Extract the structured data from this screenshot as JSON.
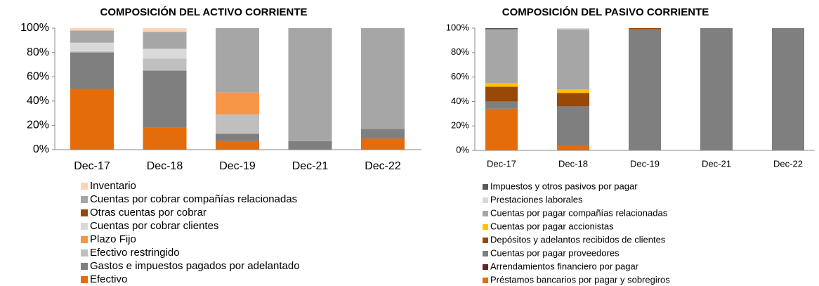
{
  "chart_data": [
    {
      "type": "bar",
      "stacked": true,
      "title": "COMPOSICIÓN DEL ACTIVO CORRIENTE",
      "categories": [
        "Dec-17",
        "Dec-18",
        "Dec-19",
        "Dec-21",
        "Dec-22"
      ],
      "ylim": [
        0,
        100
      ],
      "yticks": [
        {
          "value": 0,
          "label": "0%"
        },
        {
          "value": 20,
          "label": "20%"
        },
        {
          "value": 40,
          "label": "40%"
        },
        {
          "value": 60,
          "label": "60%"
        },
        {
          "value": 80,
          "label": "80%"
        },
        {
          "value": 100,
          "label": "100%"
        }
      ],
      "series": [
        {
          "name": "Efectivo",
          "color": "#e46c0a",
          "values": [
            50,
            18,
            7,
            0,
            9
          ]
        },
        {
          "name": "Gastos e impuestos pagados por adelantado",
          "color": "#7f7f7f",
          "values": [
            30,
            47,
            6,
            7,
            8
          ]
        },
        {
          "name": "Efectivo restringido",
          "color": "#bfbfbf",
          "values": [
            1,
            10,
            16,
            0,
            0
          ]
        },
        {
          "name": "Plazo Fijo",
          "color": "#f79646",
          "values": [
            0,
            0,
            18,
            0,
            0
          ]
        },
        {
          "name": "Cuentas por cobrar clientes",
          "color": "#d9d9d9",
          "values": [
            7,
            8,
            0,
            0,
            0
          ]
        },
        {
          "name": "Otras cuentas por cobrar",
          "color": "#974706",
          "values": [
            0,
            0,
            0,
            0,
            0
          ]
        },
        {
          "name": "Cuentas por cobrar compañías relacionadas",
          "color": "#a6a6a6",
          "values": [
            10,
            14,
            53,
            93,
            83
          ]
        },
        {
          "name": "Inventario",
          "color": "#fbd5b5",
          "values": [
            2,
            3,
            0,
            0,
            0
          ]
        }
      ]
    },
    {
      "type": "bar",
      "stacked": true,
      "title": "COMPOSICIÓN DEL PASIVO CORRIENTE",
      "categories": [
        "Dec-17",
        "Dec-18",
        "Dec-19",
        "Dec-21",
        "Dec-22"
      ],
      "ylim": [
        0,
        100
      ],
      "yticks": [
        {
          "value": 0,
          "label": "0%"
        },
        {
          "value": 20,
          "label": "20%"
        },
        {
          "value": 40,
          "label": "40%"
        },
        {
          "value": 60,
          "label": "60%"
        },
        {
          "value": 80,
          "label": "80%"
        },
        {
          "value": 100,
          "label": "100%"
        }
      ],
      "series": [
        {
          "name": "Préstamos bancarios por pagar y sobregiros",
          "color": "#e46c0a",
          "values": [
            34,
            4,
            0,
            0,
            0
          ]
        },
        {
          "name": "Arrendamientos financiero por pagar",
          "color": "#632523",
          "values": [
            0,
            0,
            0,
            0,
            0
          ]
        },
        {
          "name": "Cuentas por pagar proveedores",
          "color": "#7f7f7f",
          "values": [
            6,
            32,
            99,
            100,
            100
          ]
        },
        {
          "name": "Depósitos y adelantos recibidos de clientes",
          "color": "#984807",
          "values": [
            12,
            11,
            1,
            0,
            0
          ]
        },
        {
          "name": "Cuentas por pagar accionistas",
          "color": "#ffc000",
          "values": [
            3,
            3,
            0,
            0,
            0
          ]
        },
        {
          "name": "Cuentas por pagar compañías relacionadas",
          "color": "#a6a6a6",
          "values": [
            44,
            49,
            0,
            0,
            0
          ]
        },
        {
          "name": "Prestaciones laborales",
          "color": "#d9d9d9",
          "values": [
            0,
            1,
            0,
            0,
            0
          ]
        },
        {
          "name": "Impuestos y otros pasivos por pagar",
          "color": "#595959",
          "values": [
            1,
            0,
            0,
            0,
            0
          ]
        }
      ]
    }
  ]
}
